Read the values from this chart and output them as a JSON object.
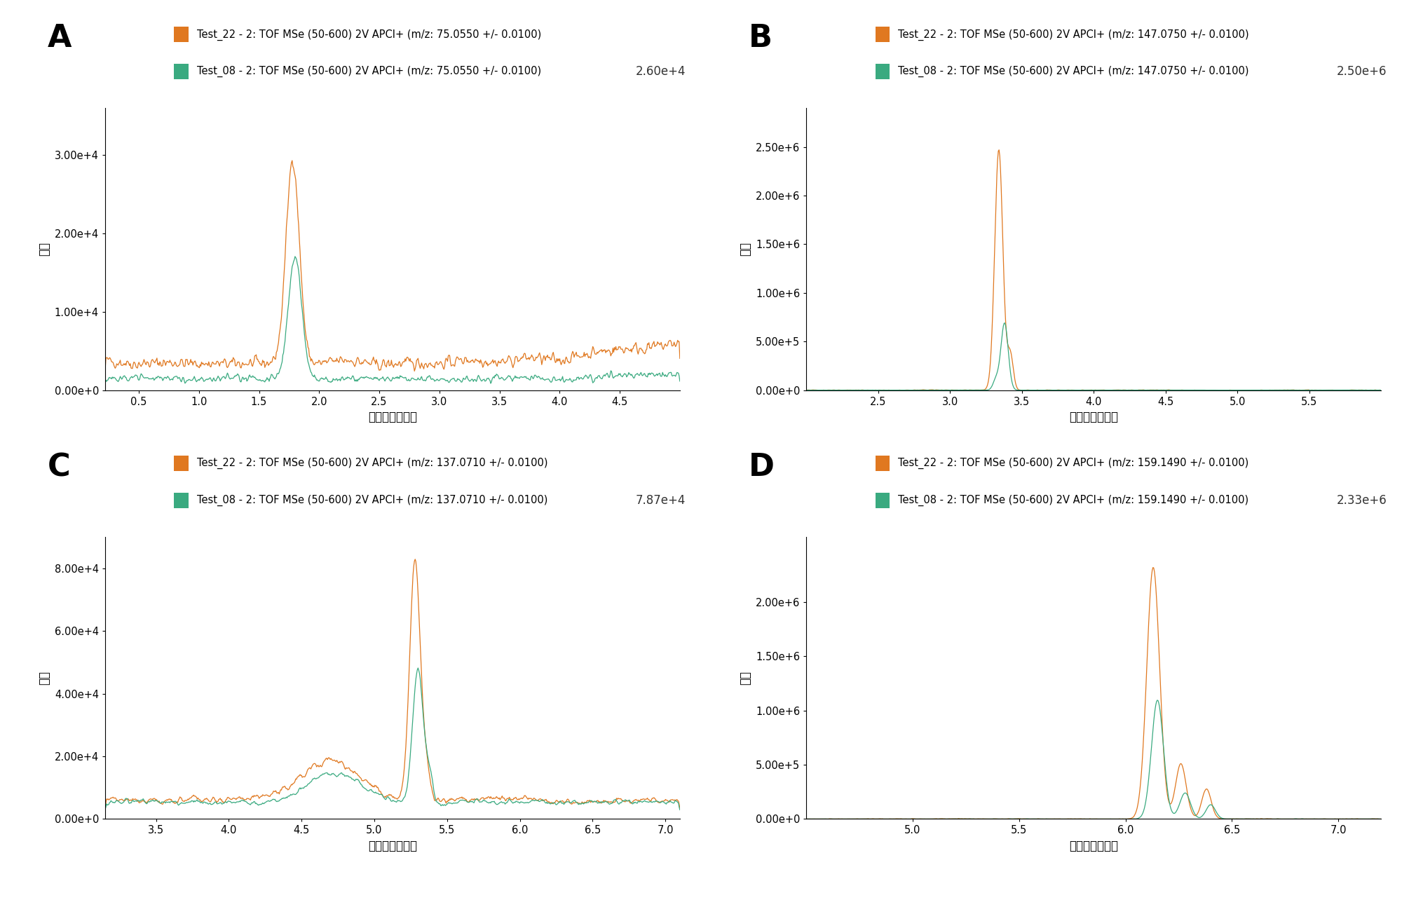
{
  "panels": [
    {
      "label": "A",
      "legend_line1": "Test_22 - 2: TOF MSe (50-600) 2V APCI+ (m/z: 75.0550 +/- 0.0100)",
      "legend_line2": "Test_08 - 2: TOF MSe (50-600) 2V APCI+ (m/z: 75.0550 +/- 0.0100)",
      "max_label": "2.60e+4",
      "xmin": 0.22,
      "xmax": 5.0,
      "ymin": 0.0,
      "ymax": 36000,
      "yticks": [
        0,
        10000,
        20000,
        30000
      ],
      "ytick_labels": [
        "0.00e+0",
        "1.00e+4",
        "2.00e+4",
        "3.00e+4"
      ],
      "xticks": [
        0.5,
        1.0,
        1.5,
        2.0,
        2.5,
        3.0,
        3.5,
        4.0,
        4.5
      ],
      "xlabel": "保持時間（分）",
      "ylabel": "強度",
      "color_orange": "#E07820",
      "color_green": "#3AAA80",
      "peak_x_orange": 1.78,
      "peak_y_orange": 26000,
      "peak_x_green": 1.8,
      "peak_y_green": 15500,
      "base_orange": 3500,
      "base_green": 1500,
      "noise_orange": 600,
      "noise_green": 350
    },
    {
      "label": "B",
      "legend_line1": "Test_22 - 2: TOF MSe (50-600) 2V APCI+ (m/z: 147.0750 +/- 0.0100)",
      "legend_line2": "Test_08 - 2: TOF MSe (50-600) 2V APCI+ (m/z: 147.0750 +/- 0.0100)",
      "max_label": "2.50e+6",
      "xmin": 2.0,
      "xmax": 6.0,
      "ymin": 0.0,
      "ymax": 2900000,
      "yticks": [
        0,
        500000,
        1000000,
        1500000,
        2000000,
        2500000
      ],
      "ytick_labels": [
        "0.00e+0",
        "5.00e+5",
        "1.00e+6",
        "1.50e+6",
        "2.00e+6",
        "2.50e+6"
      ],
      "xticks": [
        2.5,
        3.0,
        3.5,
        4.0,
        4.5,
        5.0,
        5.5
      ],
      "xlabel": "保持時間（分）",
      "ylabel": "強度",
      "color_orange": "#E07820",
      "color_green": "#3AAA80",
      "peak_x_orange": 3.34,
      "peak_y_orange": 2500000,
      "peak_x_green": 3.38,
      "peak_y_green": 700000,
      "base_orange": 0,
      "base_green": 0,
      "noise_orange": 0,
      "noise_green": 0
    },
    {
      "label": "C",
      "legend_line1": "Test_22 - 2: TOF MSe (50-600) 2V APCI+ (m/z: 137.0710 +/- 0.0100)",
      "legend_line2": "Test_08 - 2: TOF MSe (50-600) 2V APCI+ (m/z: 137.0710 +/- 0.0100)",
      "max_label": "7.87e+4",
      "xmin": 3.15,
      "xmax": 7.1,
      "ymin": 0.0,
      "ymax": 90000,
      "yticks": [
        0,
        20000,
        40000,
        60000,
        80000
      ],
      "ytick_labels": [
        "0.00e+0",
        "2.00e+4",
        "4.00e+4",
        "6.00e+4",
        "8.00e+4"
      ],
      "xticks": [
        3.5,
        4.0,
        4.5,
        5.0,
        5.5,
        6.0,
        6.5,
        7.0
      ],
      "xlabel": "保持時間（分）",
      "ylabel": "強度",
      "color_orange": "#E07820",
      "color_green": "#3AAA80",
      "peak_x_orange": 5.28,
      "peak_y_orange": 78700,
      "peak_x_green": 5.3,
      "peak_y_green": 44000,
      "base_orange": 6000,
      "base_green": 5500,
      "noise_orange": 1000,
      "noise_green": 800
    },
    {
      "label": "D",
      "legend_line1": "Test_22 - 2: TOF MSe (50-600) 2V APCI+ (m/z: 159.1490 +/- 0.0100)",
      "legend_line2": "Test_08 - 2: TOF MSe (50-600) 2V APCI+ (m/z: 159.1490 +/- 0.0100)",
      "max_label": "2.33e+6",
      "xmin": 4.5,
      "xmax": 7.2,
      "ymin": 0.0,
      "ymax": 2600000,
      "yticks": [
        0,
        500000,
        1000000,
        1500000,
        2000000
      ],
      "ytick_labels": [
        "0.00e+0",
        "5.00e+5",
        "1.00e+6",
        "1.50e+6",
        "2.00e+6"
      ],
      "xticks": [
        5.0,
        5.5,
        6.0,
        6.5,
        7.0
      ],
      "xlabel": "保持時間（分）",
      "ylabel": "強度",
      "color_orange": "#E07820",
      "color_green": "#3AAA80",
      "peak_x_orange": 6.13,
      "peak_y_orange": 2330000,
      "peak_x_green": 6.15,
      "peak_y_green": 1100000,
      "base_orange": 0,
      "base_green": 0,
      "noise_orange": 0,
      "noise_green": 0
    }
  ],
  "bg_color": "#FFFFFF",
  "label_fontsize": 32,
  "legend_fontsize": 10.5,
  "axis_label_fontsize": 12,
  "tick_fontsize": 10.5,
  "max_label_fontsize": 12
}
